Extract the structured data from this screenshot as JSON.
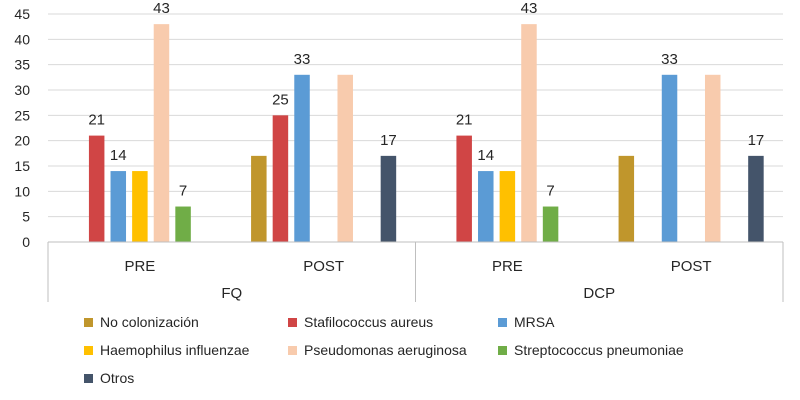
{
  "chart_data": {
    "type": "bar",
    "title": "",
    "xlabel": "",
    "ylabel": "",
    "ylim": [
      0,
      45
    ],
    "yticks": [
      0,
      5,
      10,
      15,
      20,
      25,
      30,
      35,
      40,
      45
    ],
    "gridlines": true,
    "groups": [
      {
        "label": "FQ",
        "subgroups": [
          "PRE",
          "POST"
        ]
      },
      {
        "label": "DCP",
        "subgroups": [
          "PRE",
          "POST"
        ]
      }
    ],
    "categories": [
      "PRE",
      "POST",
      "PRE",
      "POST"
    ],
    "series": [
      {
        "name": "No colonización",
        "color": "#C0962C",
        "values": [
          0,
          17,
          0,
          17
        ]
      },
      {
        "name": "Stafilococcus aureus",
        "color": "#D04545",
        "values": [
          21,
          25,
          21,
          0
        ]
      },
      {
        "name": "MRSA",
        "color": "#5B9BD5",
        "values": [
          14,
          33,
          14,
          33
        ]
      },
      {
        "name": "Haemophilus influenzae",
        "color": "#FFC000",
        "values": [
          14,
          0,
          14,
          0
        ]
      },
      {
        "name": "Pseudomonas aeruginosa",
        "color": "#F8CBAD",
        "values": [
          43,
          33,
          43,
          33
        ]
      },
      {
        "name": "Streptococcus pneumoniae",
        "color": "#70AD47",
        "values": [
          7,
          0,
          7,
          0
        ]
      },
      {
        "name": "Otros",
        "color": "#44546A",
        "values": [
          0,
          17,
          0,
          17
        ]
      }
    ],
    "data_labels": [
      {
        "category_index": 0,
        "series_index": 1,
        "text": "21"
      },
      {
        "category_index": 0,
        "series_index": 2,
        "text": "14"
      },
      {
        "category_index": 0,
        "series_index": 4,
        "text": "43"
      },
      {
        "category_index": 0,
        "series_index": 5,
        "text": "7"
      },
      {
        "category_index": 1,
        "series_index": 1,
        "text": "25"
      },
      {
        "category_index": 1,
        "series_index": 2,
        "text": "33"
      },
      {
        "category_index": 1,
        "series_index": 6,
        "text": "17"
      },
      {
        "category_index": 2,
        "series_index": 1,
        "text": "21"
      },
      {
        "category_index": 2,
        "series_index": 2,
        "text": "14"
      },
      {
        "category_index": 2,
        "series_index": 4,
        "text": "43"
      },
      {
        "category_index": 2,
        "series_index": 5,
        "text": "7"
      },
      {
        "category_index": 3,
        "series_index": 2,
        "text": "33"
      },
      {
        "category_index": 3,
        "series_index": 6,
        "text": "17"
      }
    ],
    "legend_position": "bottom"
  }
}
